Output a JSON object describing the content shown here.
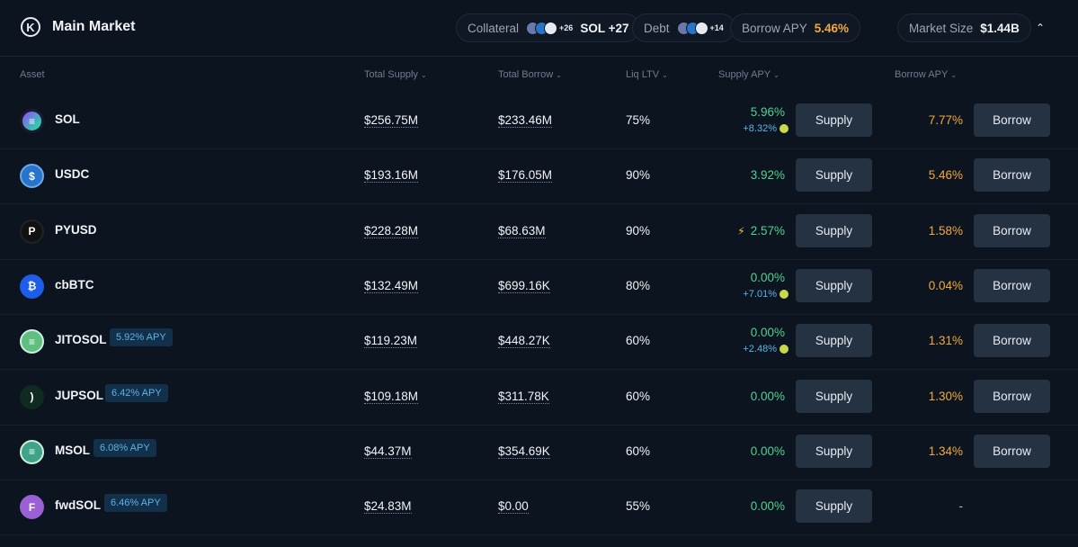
{
  "header": {
    "logo_letter": "K",
    "title": "Main Market",
    "collateral": {
      "label": "Collateral",
      "stack_plus": "+26",
      "value": "SOL +27"
    },
    "debt": {
      "label": "Debt",
      "stack_plus": "+14"
    },
    "borrow_apy": {
      "label": "Borrow APY",
      "value": "5.46%"
    },
    "market_size": {
      "label": "Market Size",
      "value": "$1.44B"
    },
    "collapse_icon": "chevron-up-icon"
  },
  "columns": {
    "asset": "Asset",
    "total_supply": "Total Supply",
    "total_borrow": "Total Borrow",
    "liq_ltv": "Liq LTV",
    "supply_apy": "Supply APY",
    "borrow_apy": "Borrow APY"
  },
  "buttons": {
    "supply": "Supply",
    "borrow": "Borrow"
  },
  "rows": [
    {
      "name": "SOL",
      "icon_glyph": "≡",
      "icon_color": "#1a1a2e",
      "badge": "",
      "total_supply": "$256.75M",
      "total_borrow": "$233.46M",
      "liq_ltv": "75%",
      "supply_apy": "5.96%",
      "supply_boost": "+8.32%",
      "borrow_apy": "7.77%",
      "has_borrow": true,
      "bolt": false
    },
    {
      "name": "USDC",
      "icon_glyph": "$",
      "icon_color": "#2775ca",
      "badge": "",
      "total_supply": "$193.16M",
      "total_borrow": "$176.05M",
      "liq_ltv": "90%",
      "supply_apy": "3.92%",
      "supply_boost": "",
      "borrow_apy": "5.46%",
      "has_borrow": true,
      "bolt": false
    },
    {
      "name": "PYUSD",
      "icon_glyph": "P",
      "icon_color": "#111111",
      "badge": "",
      "total_supply": "$228.28M",
      "total_borrow": "$68.63M",
      "liq_ltv": "90%",
      "supply_apy": "2.57%",
      "supply_boost": "",
      "borrow_apy": "1.58%",
      "has_borrow": true,
      "bolt": true
    },
    {
      "name": "cbBTC",
      "icon_glyph": "₿",
      "icon_color": "#1d5dea",
      "badge": "",
      "total_supply": "$132.49M",
      "total_borrow": "$699.16K",
      "liq_ltv": "80%",
      "supply_apy": "0.00%",
      "supply_boost": "+7.01%",
      "borrow_apy": "0.04%",
      "has_borrow": true,
      "bolt": false
    },
    {
      "name": "JITOSOL",
      "icon_glyph": "≡",
      "icon_color": "#5fbf7f",
      "badge": "5.92% APY",
      "total_supply": "$119.23M",
      "total_borrow": "$448.27K",
      "liq_ltv": "60%",
      "supply_apy": "0.00%",
      "supply_boost": "+2.48%",
      "borrow_apy": "1.31%",
      "has_borrow": true,
      "bolt": false
    },
    {
      "name": "JUPSOL",
      "icon_glyph": ")",
      "icon_color": "#0f2a20",
      "badge": "6.42% APY",
      "total_supply": "$109.18M",
      "total_borrow": "$311.78K",
      "liq_ltv": "60%",
      "supply_apy": "0.00%",
      "supply_boost": "",
      "borrow_apy": "1.30%",
      "has_borrow": true,
      "bolt": false
    },
    {
      "name": "MSOL",
      "icon_glyph": "≡",
      "icon_color": "#3fa389",
      "badge": "6.08% APY",
      "total_supply": "$44.37M",
      "total_borrow": "$354.69K",
      "liq_ltv": "60%",
      "supply_apy": "0.00%",
      "supply_boost": "",
      "borrow_apy": "1.34%",
      "has_borrow": true,
      "bolt": false
    },
    {
      "name": "fwdSOL",
      "icon_glyph": "F",
      "icon_color": "#9b5fd6",
      "badge": "6.46% APY",
      "total_supply": "$24.83M",
      "total_borrow": "$0.00",
      "liq_ltv": "55%",
      "supply_apy": "0.00%",
      "supply_boost": "",
      "borrow_apy": "-",
      "has_borrow": false,
      "bolt": false
    }
  ]
}
